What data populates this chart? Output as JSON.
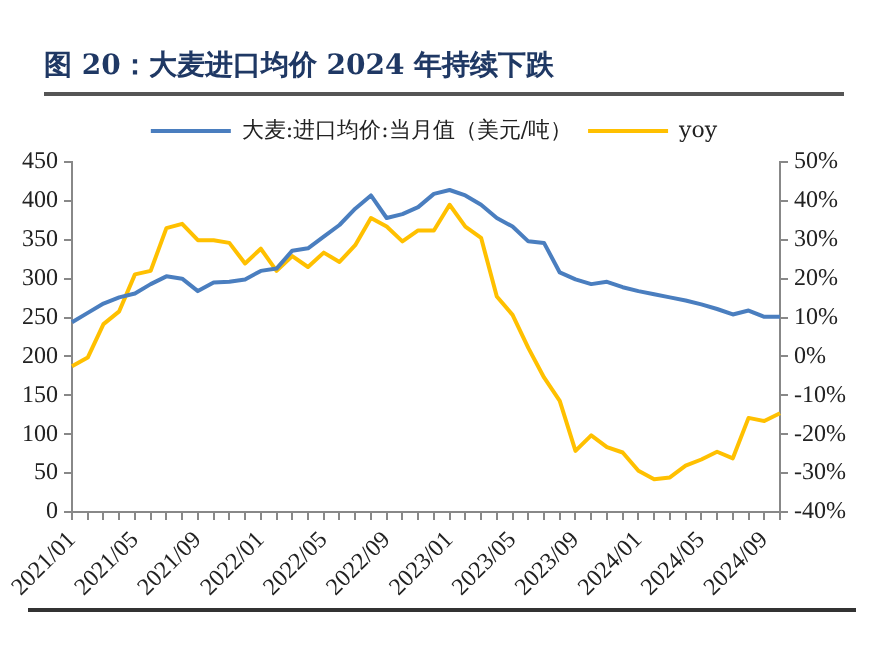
{
  "chart_data": {
    "type": "line",
    "title": "图 20：大麦进口均价 2024 年持续下跌",
    "categories": [
      "2021/01",
      null,
      null,
      null,
      "2021/05",
      null,
      null,
      null,
      "2021/09",
      null,
      null,
      null,
      "2022/01",
      null,
      null,
      null,
      "2022/05",
      null,
      null,
      null,
      "2022/09",
      null,
      null,
      null,
      "2023/01",
      null,
      null,
      null,
      "2023/05",
      null,
      null,
      null,
      "2023/09",
      null,
      null,
      null,
      "2024/01",
      null,
      null,
      null,
      "2024/05",
      null,
      null,
      null,
      "2024/09",
      null
    ],
    "series": [
      {
        "name": "大麦:进口均价:当月值（美元/吨）",
        "color": "#4a7ebf",
        "values": [
          244,
          256,
          268,
          276,
          281,
          293,
          303,
          300,
          284,
          295,
          296,
          299,
          310,
          313,
          336,
          339,
          354,
          369,
          390,
          407,
          378,
          383,
          392,
          409,
          414,
          407,
          395,
          378,
          367,
          348,
          346,
          308,
          299,
          293,
          296,
          289,
          284,
          280,
          276,
          272,
          267,
          261,
          254,
          259,
          251,
          251
        ]
      },
      {
        "name": "yoy",
        "color": "#ffc000",
        "axis": "y2",
        "values": [
          -2.5,
          -0.3,
          8.3,
          11.6,
          21.1,
          22.0,
          33.0,
          34.1,
          29.9,
          29.9,
          29.2,
          23.9,
          27.7,
          22.0,
          25.8,
          23.0,
          26.7,
          24.3,
          28.6,
          35.6,
          33.4,
          29.6,
          32.4,
          32.4,
          39.0,
          33.4,
          30.5,
          15.4,
          10.7,
          2.2,
          -5.4,
          -11.4,
          -24.3,
          -20.3,
          -23.3,
          -24.7,
          -29.4,
          -31.6,
          -31.1,
          -28.1,
          -26.5,
          -24.5,
          -26.2,
          -15.8,
          -16.6,
          -14.6
        ]
      }
    ],
    "ylim": [
      0,
      450
    ],
    "yticks": [
      0,
      50,
      100,
      150,
      200,
      250,
      300,
      350,
      400,
      450
    ],
    "y2lim": [
      -40,
      50
    ],
    "y2ticks": [
      {
        "value": -40,
        "label": "-40%"
      },
      {
        "value": -30,
        "label": "-30%"
      },
      {
        "value": -20,
        "label": "-20%"
      },
      {
        "value": -10,
        "label": "-10%"
      },
      {
        "value": 0,
        "label": "0%"
      },
      {
        "value": 10,
        "label": "10%"
      },
      {
        "value": 20,
        "label": "20%"
      },
      {
        "value": 30,
        "label": "30%"
      },
      {
        "value": 40,
        "label": "40%"
      },
      {
        "value": 50,
        "label": "50%"
      }
    ],
    "grid": false,
    "legend": "top",
    "marker": "none",
    "line_style": "solid"
  }
}
